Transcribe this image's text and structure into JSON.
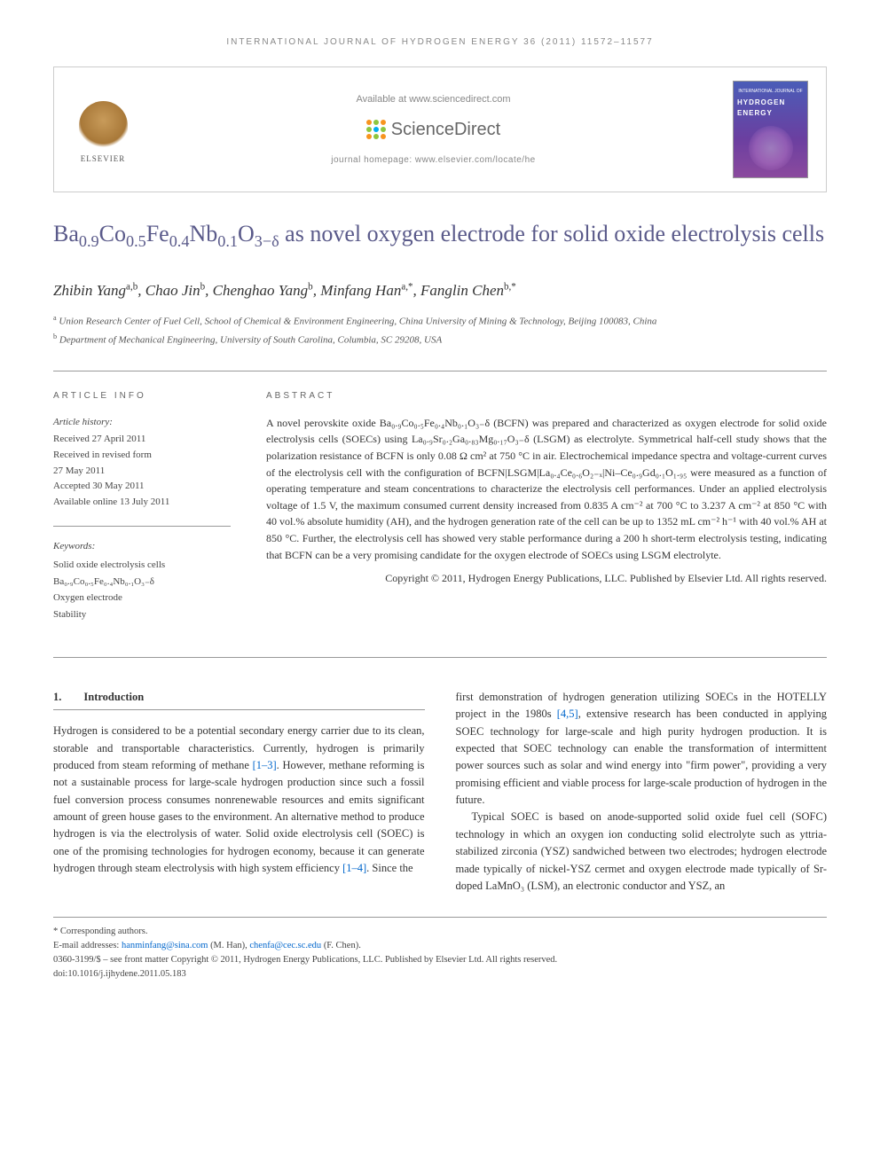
{
  "running_header": "INTERNATIONAL JOURNAL OF HYDROGEN ENERGY 36 (2011) 11572–11577",
  "banner": {
    "elsevier": "ELSEVIER",
    "available": "Available at www.sciencedirect.com",
    "sciencedirect": "ScienceDirect",
    "homepage": "journal homepage: www.elsevier.com/locate/he",
    "cover_small": "INTERNATIONAL JOURNAL OF",
    "cover_big": "HYDROGEN ENERGY",
    "sd_dot_colors": [
      "#f7941e",
      "#8dc63f",
      "#f7941e",
      "#8dc63f",
      "#00aeef",
      "#8dc63f",
      "#f7941e",
      "#8dc63f",
      "#f7941e"
    ]
  },
  "title_parts": {
    "prefix": "Ba",
    "s1": "0.9",
    "t2": "Co",
    "s2": "0.5",
    "t3": "Fe",
    "s3": "0.4",
    "t4": "Nb",
    "s4": "0.1",
    "t5": "O",
    "s5": "3−δ",
    "suffix": " as novel oxygen electrode for solid oxide electrolysis cells"
  },
  "authors": [
    {
      "name": "Zhibin Yang",
      "sup": "a,b"
    },
    {
      "name": "Chao Jin",
      "sup": "b"
    },
    {
      "name": "Chenghao Yang",
      "sup": "b"
    },
    {
      "name": "Minfang Han",
      "sup": "a,*"
    },
    {
      "name": "Fanglin Chen",
      "sup": "b,*"
    }
  ],
  "affiliations": [
    {
      "sup": "a",
      "text": "Union Research Center of Fuel Cell, School of Chemical & Environment Engineering, China University of Mining & Technology, Beijing 100083, China"
    },
    {
      "sup": "b",
      "text": "Department of Mechanical Engineering, University of South Carolina, Columbia, SC 29208, USA"
    }
  ],
  "article_info": {
    "header": "ARTICLE INFO",
    "history_label": "Article history:",
    "history": [
      "Received 27 April 2011",
      "Received in revised form",
      "27 May 2011",
      "Accepted 30 May 2011",
      "Available online 13 July 2011"
    ],
    "keywords_label": "Keywords:",
    "keywords": [
      "Solid oxide electrolysis cells",
      "Ba₀.₉Co₀.₅Fe₀.₄Nb₀.₁O₃₋δ",
      "Oxygen electrode",
      "Stability"
    ]
  },
  "abstract": {
    "header": "ABSTRACT",
    "body": "A novel perovskite oxide Ba₀.₉Co₀.₅Fe₀.₄Nb₀.₁O₃₋δ (BCFN) was prepared and characterized as oxygen electrode for solid oxide electrolysis cells (SOECs) using La₀.₉Sr₀.₂Ga₀.₈₃Mg₀.₁₇O₃₋δ (LSGM) as electrolyte. Symmetrical half-cell study shows that the polarization resistance of BCFN is only 0.08 Ω cm² at 750 °C in air. Electrochemical impedance spectra and voltage-current curves of the electrolysis cell with the configuration of BCFN|LSGM|La₀.₄Ce₀.₆O₂₋ₓ|Ni–Ce₀.₉Gd₀.₁O₁.₉₅ were measured as a function of operating temperature and steam concentrations to characterize the electrolysis cell performances. Under an applied electrolysis voltage of 1.5 V, the maximum consumed current density increased from 0.835 A cm⁻² at 700 °C to 3.237 A cm⁻² at 850 °C with 40 vol.% absolute humidity (AH), and the hydrogen generation rate of the cell can be up to 1352 mL cm⁻² h⁻¹ with 40 vol.% AH at 850 °C. Further, the electrolysis cell has showed very stable performance during a 200 h short-term electrolysis testing, indicating that BCFN can be a very promising candidate for the oxygen electrode of SOECs using LSGM electrolyte.",
    "copyright": "Copyright © 2011, Hydrogen Energy Publications, LLC. Published by Elsevier Ltd. All rights reserved."
  },
  "intro": {
    "section_num": "1.",
    "section_title": "Introduction",
    "col1_p1_a": "Hydrogen is considered to be a potential secondary energy carrier due to its clean, storable and transportable characteristics. Currently, hydrogen is primarily produced from steam reforming of methane ",
    "ref1": "[1–3]",
    "col1_p1_b": ". However, methane reforming is not a sustainable process for large-scale hydrogen production since such a fossil fuel conversion process consumes nonrenewable resources and emits significant amount of green house gases to the environment. An alternative method to produce hydrogen is via the electrolysis of water. Solid oxide electrolysis cell (SOEC) is one of the promising technologies for hydrogen economy, because it can generate hydrogen through steam electrolysis with high system efficiency ",
    "ref2": "[1–4]",
    "col1_p1_c": ". Since the",
    "col2_p1_a": "first demonstration of hydrogen generation utilizing SOECs in the HOTELLY project in the 1980s ",
    "ref3": "[4,5]",
    "col2_p1_b": ", extensive research has been conducted in applying SOEC technology for large-scale and high purity hydrogen production. It is expected that SOEC technology can enable the transformation of intermittent power sources such as solar and wind energy into \"firm power\", providing a very promising efficient and viable process for large-scale production of hydrogen in the future.",
    "col2_p2": "Typical SOEC is based on anode-supported solid oxide fuel cell (SOFC) technology in which an oxygen ion conducting solid electrolyte such as yttria-stabilized zirconia (YSZ) sandwiched between two electrodes; hydrogen electrode made typically of nickel-YSZ cermet and oxygen electrode made typically of Sr-doped LaMnO₃ (LSM), an electronic conductor and YSZ, an"
  },
  "footer": {
    "corresponding": "* Corresponding authors.",
    "email_label": "E-mail addresses: ",
    "email1": "hanminfang@sina.com",
    "email1_who": " (M. Han), ",
    "email2": "chenfa@cec.sc.edu",
    "email2_who": " (F. Chen).",
    "issn_line": "0360-3199/$ – see front matter Copyright © 2011, Hydrogen Energy Publications, LLC. Published by Elsevier Ltd. All rights reserved.",
    "doi": "doi:10.1016/j.ijhydene.2011.05.183"
  },
  "colors": {
    "title": "#5a5a8a",
    "link": "#0066cc",
    "border": "#999999"
  }
}
